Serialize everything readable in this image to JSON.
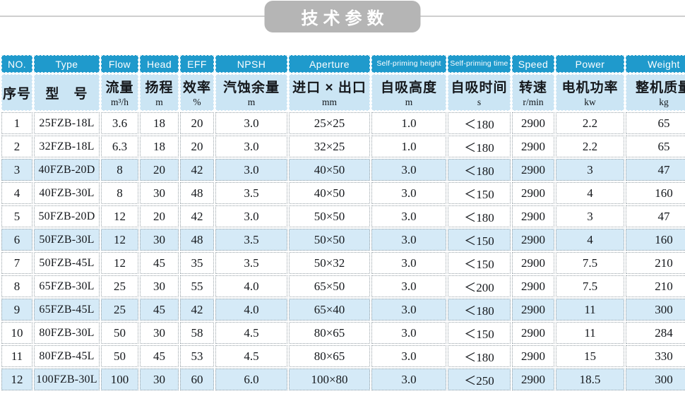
{
  "title": "技术参数",
  "colors": {
    "header_blue": "#1f9acc",
    "header_light_blue": "#cbe5f4",
    "row_highlight_blue": "#d5eaf7",
    "title_pill_gray": "#b5b5b5",
    "divider_gray": "#cfcfcf",
    "dotted_border_gray": "#96a0a6"
  },
  "table": {
    "header": {
      "en": [
        "NO.",
        "Type",
        "Flow",
        "Head",
        "EFF",
        "NPSH",
        "Aperture",
        "Self-priming height",
        "Self-priming time",
        "Speed",
        "Power",
        "Weight"
      ],
      "zh": [
        "序号",
        "型　号",
        "流量",
        "扬程",
        "效率",
        "汽蚀余量",
        "进口 × 出口",
        "自吸高度",
        "自吸时间",
        "转速",
        "电机功率",
        "整机质量"
      ],
      "units": [
        "",
        "",
        "m³/h",
        "m",
        "%",
        "m",
        "mm",
        "m",
        "s",
        "r/min",
        "kw",
        "kg"
      ]
    },
    "rows": [
      [
        "1",
        "25FZB-18L",
        "3.6",
        "18",
        "20",
        "3.0",
        "25×25",
        "1.0",
        "＜180",
        "2900",
        "2.2",
        "65"
      ],
      [
        "2",
        "32FZB-18L",
        "6.3",
        "18",
        "20",
        "3.0",
        "32×25",
        "1.0",
        "＜180",
        "2900",
        "2.2",
        "65"
      ],
      [
        "3",
        "40FZB-20D",
        "8",
        "20",
        "42",
        "3.0",
        "40×50",
        "3.0",
        "＜180",
        "2900",
        "3",
        "47"
      ],
      [
        "4",
        "40FZB-30L",
        "8",
        "30",
        "48",
        "3.5",
        "40×50",
        "3.0",
        "＜150",
        "2900",
        "4",
        "160"
      ],
      [
        "5",
        "50FZB-20D",
        "12",
        "20",
        "42",
        "3.0",
        "50×50",
        "3.0",
        "＜180",
        "2900",
        "3",
        "47"
      ],
      [
        "6",
        "50FZB-30L",
        "12",
        "30",
        "48",
        "3.5",
        "50×50",
        "3.0",
        "＜150",
        "2900",
        "4",
        "160"
      ],
      [
        "7",
        "50FZB-45L",
        "12",
        "45",
        "35",
        "3.5",
        "50×32",
        "3.0",
        "＜150",
        "2900",
        "7.5",
        "210"
      ],
      [
        "8",
        "65FZB-30L",
        "25",
        "30",
        "55",
        "4.0",
        "65×50",
        "3.0",
        "＜200",
        "2900",
        "7.5",
        "210"
      ],
      [
        "9",
        "65FZB-45L",
        "25",
        "45",
        "42",
        "4.0",
        "65×40",
        "3.0",
        "＜180",
        "2900",
        "11",
        "300"
      ],
      [
        "10",
        "80FZB-30L",
        "50",
        "30",
        "58",
        "4.5",
        "80×65",
        "3.0",
        "＜150",
        "2900",
        "11",
        "284"
      ],
      [
        "11",
        "80FZB-45L",
        "50",
        "45",
        "53",
        "4.5",
        "80×65",
        "3.0",
        "＜180",
        "2900",
        "15",
        "330"
      ],
      [
        "12",
        "100FZB-30L",
        "100",
        "30",
        "60",
        "6.0",
        "100×80",
        "3.0",
        "＜250",
        "2900",
        "18.5",
        "300"
      ]
    ],
    "highlighted_row_numbers": [
      3,
      6,
      9,
      12
    ]
  }
}
